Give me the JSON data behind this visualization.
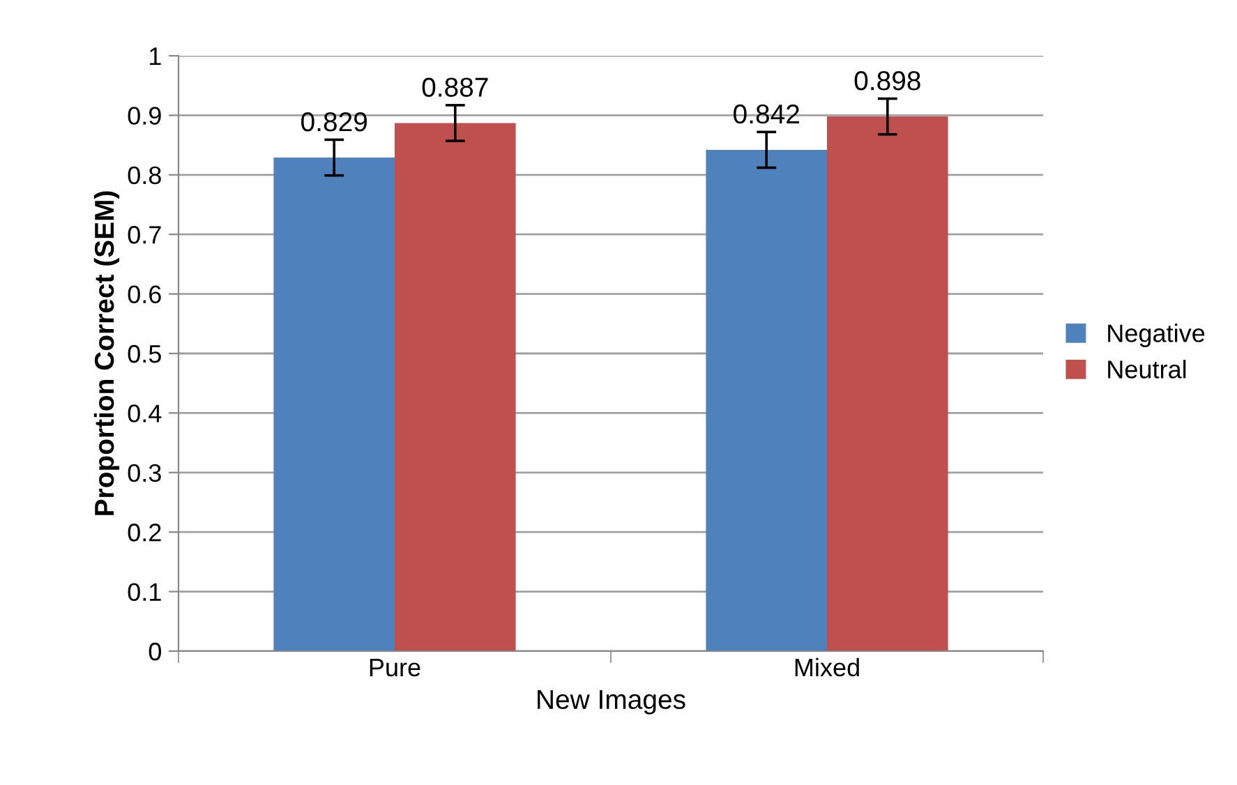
{
  "chart_data": {
    "type": "bar",
    "categories": [
      "Pure",
      "Mixed"
    ],
    "series": [
      {
        "name": "Negative",
        "color": "#4f81bd",
        "values": [
          0.829,
          0.842
        ],
        "errors": [
          0.03,
          0.03
        ]
      },
      {
        "name": "Neutral",
        "color": "#c0504d",
        "values": [
          0.887,
          0.898
        ],
        "errors": [
          0.03,
          0.03
        ]
      }
    ],
    "xlabel": "New Images",
    "ylabel": "Proportion Correct (SEM)",
    "ylim": [
      0,
      1
    ],
    "yticks": [
      0,
      0.1,
      0.2,
      0.3,
      0.4,
      0.5,
      0.6,
      0.7,
      0.8,
      0.9,
      1
    ],
    "grid": "y",
    "legend": "right",
    "data_labels": true
  }
}
